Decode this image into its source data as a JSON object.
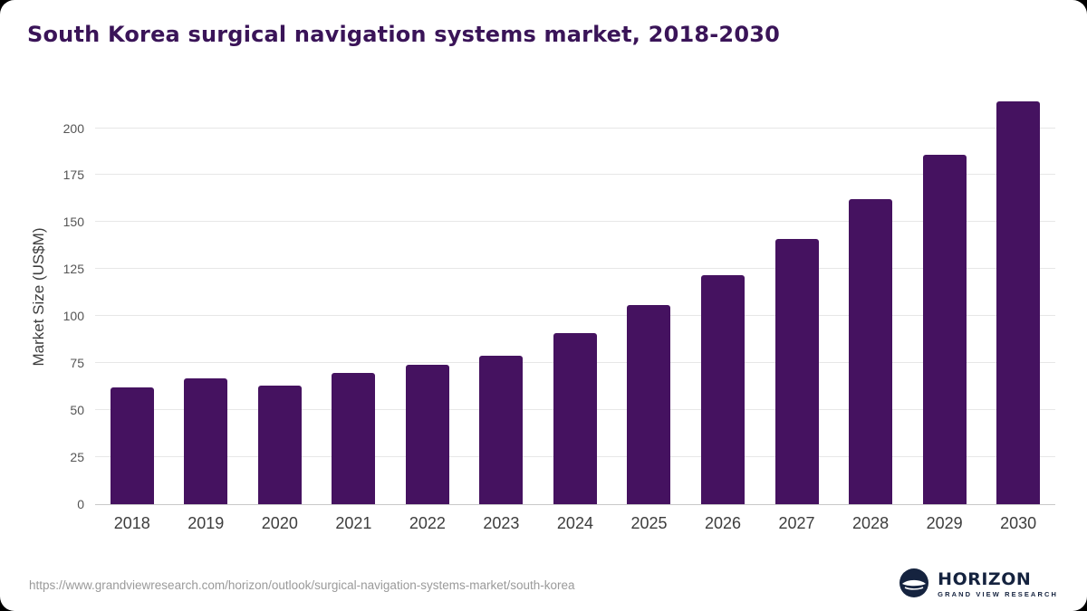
{
  "chart_data": {
    "type": "bar",
    "title": "South Korea surgical navigation systems market, 2018-2030",
    "xlabel": "",
    "ylabel": "Market Size (US$M)",
    "categories": [
      "2018",
      "2019",
      "2020",
      "2021",
      "2022",
      "2023",
      "2024",
      "2025",
      "2026",
      "2027",
      "2028",
      "2029",
      "2030"
    ],
    "values": [
      62,
      67,
      63,
      70,
      74,
      79,
      91,
      106,
      122,
      141,
      162,
      186,
      214
    ],
    "yticks": [
      0,
      25,
      50,
      75,
      100,
      125,
      150,
      175,
      200
    ],
    "ylim": [
      0,
      220
    ],
    "grid": "horizontal",
    "legend": "none",
    "bar_color": "#451260"
  },
  "footer": {
    "source_url": "https://www.grandviewresearch.com/horizon/outlook/surgical-navigation-systems-market/south-korea",
    "logo_title": "HORIZON",
    "logo_subtitle": "GRAND VIEW RESEARCH"
  }
}
